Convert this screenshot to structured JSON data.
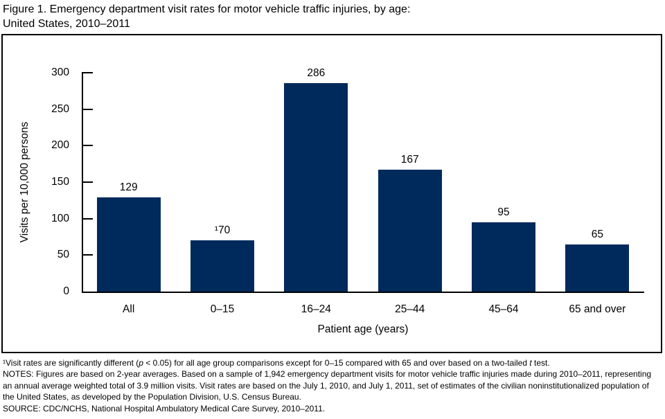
{
  "header": {
    "line1": "Figure 1. Emergency department visit rates for motor vehicle traffic injuries, by age:",
    "line2": "United States, 2010–2011"
  },
  "chart_data": {
    "type": "bar",
    "title": "Figure 1. Emergency department visit rates for motor vehicle traffic injuries, by age: United States, 2010–2011",
    "categories": [
      "All",
      "0–15",
      "16–24",
      "25–44",
      "45–64",
      "65 and over"
    ],
    "values": [
      129,
      70,
      286,
      167,
      95,
      65
    ],
    "bar_labels": [
      "129",
      "¹70",
      "286",
      "167",
      "95",
      "65"
    ],
    "xlabel": "Patient age (years)",
    "ylabel": "Visits per 10,000 persons",
    "ylim": [
      0,
      300
    ],
    "yticks": [
      0,
      50,
      100,
      150,
      200,
      250,
      300
    ],
    "bar_color": "#002A5C",
    "axis_color": "#000000",
    "grid": false,
    "legend": "none"
  },
  "footnotes": {
    "fn1_pre": "¹Visit rates are significantly different (",
    "fn1_p": "p",
    "fn1_mid": " < 0.05) for all age group comparisons except for 0–15 compared with 65 and over based on a two-tailed ",
    "fn1_t": "t",
    "fn1_post": " test.",
    "notes": "NOTES: Figures are based on 2-year averages. Based on a sample of 1,942 emergency department visits for motor vehicle traffic injuries made during 2010–2011, representing an annual average weighted total of 3.9 million visits. Visit rates are based on the July 1, 2010, and July 1, 2011, set of estimates of the civilian noninstitutionalized population of the United States, as developed by the Population Division, U.S. Census Bureau.",
    "source": "SOURCE: CDC/NCHS, National Hospital Ambulatory Medical Care Survey, 2010–2011."
  }
}
